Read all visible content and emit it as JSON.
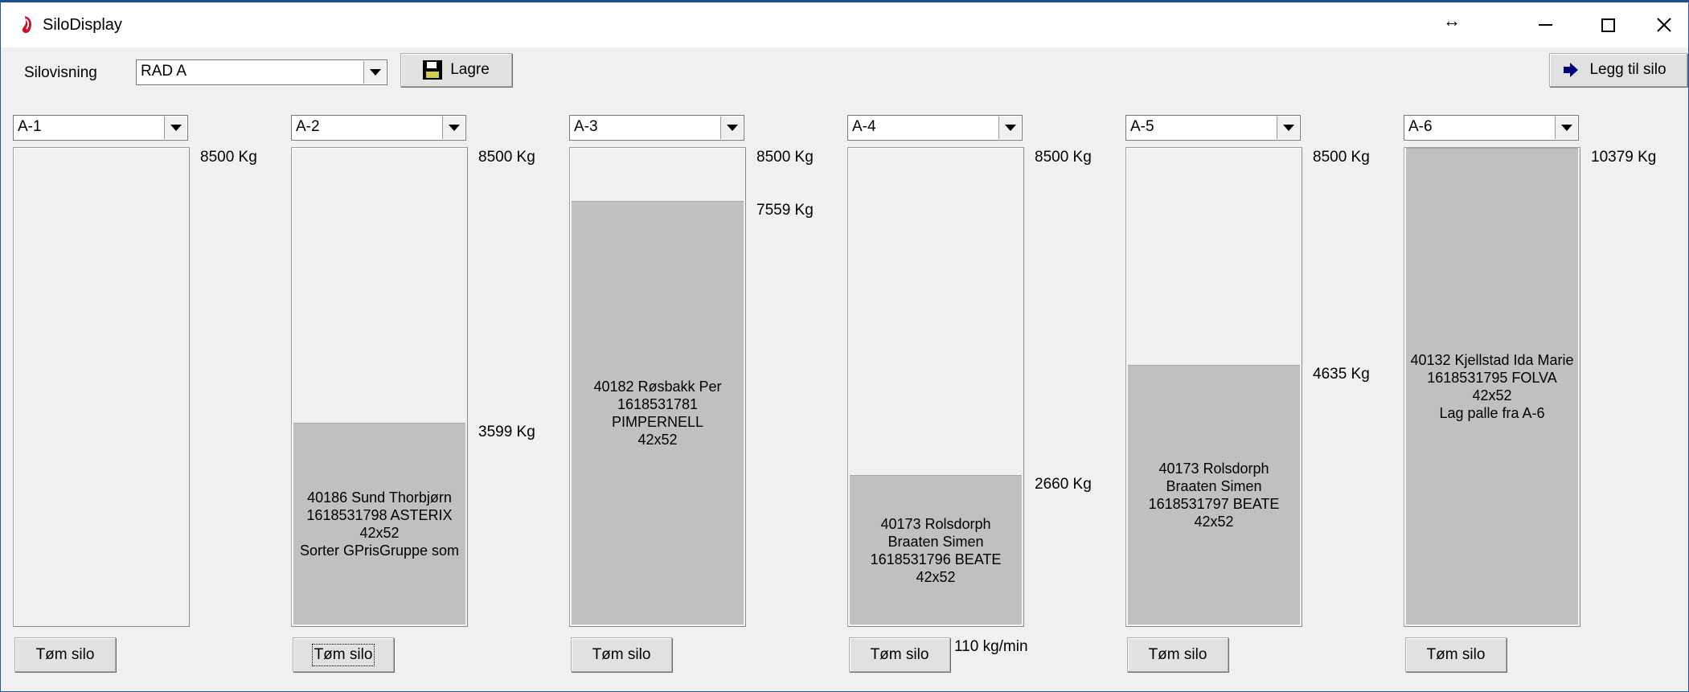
{
  "window": {
    "title": "SiloDisplay",
    "icons": [
      "app-icon",
      "resize-icon",
      "minimize-icon",
      "maximize-icon",
      "close-icon"
    ]
  },
  "toolbar": {
    "view_label": "Silovisning",
    "view_value": "RAD A",
    "save_label": "Lagre",
    "add_label": "Legg til silo"
  },
  "silos": [
    {
      "name": "A-1",
      "capacity_label": "8500 Kg",
      "fill_label": "",
      "fill_fraction": 0,
      "text": "",
      "empty_label": "Tøm silo",
      "rate": ""
    },
    {
      "name": "A-2",
      "capacity_label": "8500 Kg",
      "fill_label": "3599 Kg",
      "fill_fraction": 0.4234,
      "text": "40186 Sund Thorbjørn\n1618531798 ASTERIX\n42x52\nSorter GPrisGruppe som",
      "empty_label": "Tøm silo",
      "rate": ""
    },
    {
      "name": "A-3",
      "capacity_label": "8500 Kg",
      "fill_label": "7559 Kg",
      "fill_fraction": 0.8893,
      "text": "40182 Røsbakk Per\n1618531781\nPIMPERNELL\n42x52",
      "empty_label": "Tøm silo",
      "rate": ""
    },
    {
      "name": "A-4",
      "capacity_label": "8500 Kg",
      "fill_label": "2660 Kg",
      "fill_fraction": 0.3129,
      "text": "40173 Rolsdorph\nBraaten Simen\n1618531796 BEATE\n42x52",
      "empty_label": "Tøm silo",
      "rate": "110 kg/min"
    },
    {
      "name": "A-5",
      "capacity_label": "8500 Kg",
      "fill_label": "4635 Kg",
      "fill_fraction": 0.5453,
      "text": "40173 Rolsdorph\nBraaten Simen\n1618531797 BEATE\n42x52",
      "empty_label": "Tøm silo",
      "rate": ""
    },
    {
      "name": "A-6",
      "capacity_label": "10379 Kg",
      "fill_label": "",
      "fill_fraction": 1,
      "text": "40132 Kjellstad Ida Marie\n1618531795 FOLVA\n42x52\nLag palle fra A-6",
      "empty_label": "Tøm silo",
      "rate": ""
    }
  ]
}
